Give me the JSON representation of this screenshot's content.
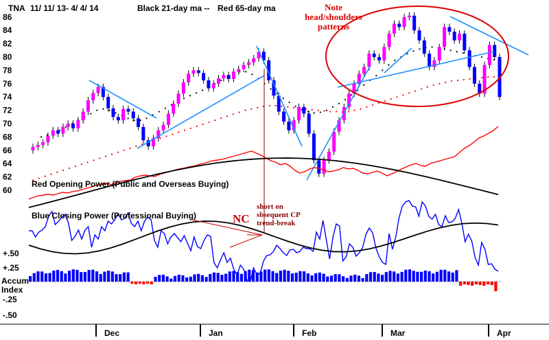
{
  "chart_data": {
    "type": "candlestick",
    "header": {
      "ticker": "TNA",
      "range": "11/ 11/ 13- 4/ 4/ 14",
      "ma_black": "Black 21-day ma --",
      "ma_red": "Red 65-day ma"
    },
    "price_axis": {
      "ticks": [
        "60",
        "62",
        "64",
        "66",
        "68",
        "70",
        "72",
        "74",
        "76",
        "78",
        "80",
        "82",
        "84",
        "86"
      ],
      "ylim": [
        60,
        87
      ]
    },
    "months": [
      "Dec",
      "Jan",
      "Feb",
      "Mar",
      "Apr"
    ],
    "panel_labels": {
      "red_opening_power": "Red Opening Power (Public and Overseas Buying)",
      "blue_closing_power": "Blue Closing Power (Professional Buying)",
      "accum_index": [
        "Accum",
        "Index"
      ]
    },
    "accum_axis": {
      "ticks": [
        "+.50",
        "+.25",
        "-.25",
        "-.50"
      ]
    },
    "annotations": {
      "note": [
        "Note",
        "head/shoulders",
        "patterns"
      ],
      "nc": "NC",
      "short": [
        "short on",
        "sbsequent CP",
        "trend-break"
      ]
    },
    "colors": {
      "up": "#ff00ff",
      "down": "#0000ff",
      "ma21": "#000000",
      "ma65": "#ff0000",
      "trend": "#1e90ff",
      "annot": "#cc0000"
    },
    "closes": [
      66.5,
      66.8,
      67.2,
      68.2,
      69.0,
      68.5,
      69.5,
      70.0,
      69.3,
      70.5,
      71.8,
      73.5,
      74.6,
      75.5,
      74.0,
      72.3,
      71.0,
      70.5,
      72.2,
      71.8,
      70.8,
      69.5,
      67.5,
      66.6,
      67.8,
      69.0,
      69.8,
      71.5,
      73.0,
      74.5,
      76.2,
      77.5,
      78.0,
      77.6,
      76.5,
      75.3,
      76.0,
      76.8,
      77.3,
      76.7,
      77.8,
      78.2,
      78.8,
      79.2,
      79.8,
      80.8,
      79.5,
      76.5,
      74.2,
      71.8,
      70.3,
      69.0,
      70.5,
      72.5,
      71.5,
      68.5,
      64.5,
      62.5,
      64.5,
      65.8,
      68.8,
      70.5,
      72.5,
      74.5,
      76.0,
      77.5,
      78.5,
      80.5,
      80.0,
      79.5,
      81.5,
      83.5,
      85.0,
      84.5,
      86.0,
      86.2,
      84.0,
      82.5,
      80.5,
      78.5,
      79.5,
      81.5,
      84.5,
      83.8,
      82.5,
      83.5,
      81.0,
      78.5,
      76.0,
      74.5,
      78.8,
      81.8,
      80.0,
      74.0
    ],
    "red_opening_power": [
      290,
      287,
      285,
      284,
      283,
      284,
      282,
      280,
      281,
      279,
      278,
      276,
      274,
      272,
      270,
      268,
      267,
      269,
      266,
      264,
      263,
      262,
      258,
      256,
      255,
      256,
      257,
      254,
      252,
      250,
      248,
      246,
      245,
      243,
      242,
      240,
      238,
      236,
      234,
      233,
      232,
      230,
      228,
      226,
      224,
      222,
      220,
      223,
      226,
      230,
      234,
      236,
      240,
      238,
      242,
      248,
      252,
      250,
      246,
      244,
      245,
      248,
      250,
      249,
      247,
      244,
      246,
      245,
      248,
      252,
      253,
      251,
      249,
      252,
      256,
      253,
      250,
      246,
      243,
      240,
      238,
      241,
      242,
      238,
      236,
      234,
      232,
      230,
      228,
      222,
      216,
      212,
      207,
      201,
      198,
      194,
      190,
      184
    ],
    "blue_closing_power": [
      336,
      336,
      345,
      338,
      335,
      330,
      315,
      308,
      327,
      322,
      316,
      312,
      325,
      350,
      344,
      335,
      348,
      335,
      330,
      360,
      342,
      348,
      330,
      336,
      322,
      326,
      320,
      311,
      320,
      318,
      310,
      325,
      330,
      322,
      336,
      322,
      316,
      320,
      350,
      360,
      336,
      340,
      355,
      345,
      340,
      346,
      352,
      343,
      354,
      365,
      345,
      359,
      362,
      350,
      342,
      344,
      382,
      390,
      378,
      368,
      382,
      376,
      392,
      400,
      386,
      392,
      408,
      410,
      390,
      400,
      398,
      380,
      372,
      371,
      366,
      357,
      362,
      368,
      372,
      364,
      363,
      368,
      366,
      360,
      362,
      362,
      366,
      338,
      348,
      321,
      349,
      377,
      345,
      326,
      329,
      380,
      374,
      355,
      360,
      373,
      368,
      360,
      341,
      332,
      339,
      361,
      374,
      382,
      385,
      340,
      363,
      345,
      317,
      300,
      294,
      292,
      300,
      301,
      315,
      294,
      300,
      315,
      319,
      312,
      327,
      330,
      314,
      324,
      323,
      318,
      305,
      325,
      352,
      341,
      351,
      375,
      386,
      353,
      363,
      385,
      384,
      392,
      395
    ],
    "ma65_price": [
      61.5,
      61.8,
      62.1,
      62.4,
      62.7,
      63.0,
      63.3,
      63.6,
      63.9,
      64.2,
      64.5,
      64.8,
      65.1,
      65.4,
      65.7,
      66.0,
      66.3,
      66.6,
      66.9,
      67.2,
      67.5,
      67.8,
      68.1,
      68.4,
      68.7,
      69.0,
      69.3,
      69.6,
      69.9,
      70.2,
      70.5,
      70.8,
      71.1,
      71.4,
      71.7,
      72.0,
      72.2,
      72.4,
      72.6,
      72.7,
      72.7,
      72.6,
      72.5,
      72.4,
      72.3,
      72.2,
      72.1,
      72.0,
      71.9,
      71.8,
      71.8,
      71.7,
      71.8,
      72.0,
      72.2,
      72.5,
      72.8,
      73.1,
      73.4,
      73.7,
      74.0,
      74.3,
      74.6,
      74.9,
      75.2,
      75.5,
      75.8,
      76.0,
      76.2,
      76.4,
      76.5,
      76.6,
      76.7,
      76.8,
      76.9,
      77.0,
      77.0
    ],
    "ma21_price": [
      68.0,
      68.3,
      68.6,
      69.0,
      69.5,
      70.0,
      70.5,
      71.0,
      71.5,
      72.0,
      72.2,
      72.0,
      71.6,
      71.2,
      70.8,
      70.5,
      70.5,
      70.8,
      71.3,
      71.8,
      72.3,
      72.8,
      73.3,
      73.8,
      74.2,
      74.6,
      75.0,
      75.5,
      76.0,
      76.5,
      77.0,
      77.5,
      77.8,
      77.8,
      77.4,
      76.8,
      76.0,
      75.2,
      74.5,
      73.8,
      73.2,
      72.6,
      72.1,
      71.8,
      71.6,
      71.7,
      72.0,
      72.5,
      73.0,
      73.6,
      74.3,
      75.0,
      75.8,
      76.5,
      77.2,
      78.0,
      78.8,
      79.5,
      80.0,
      80.5,
      80.9,
      81.2,
      81.4,
      81.5,
      81.4,
      81.2,
      81.0,
      80.8,
      80.6,
      80.4,
      80.2,
      80.0,
      79.8,
      79.6
    ]
  }
}
